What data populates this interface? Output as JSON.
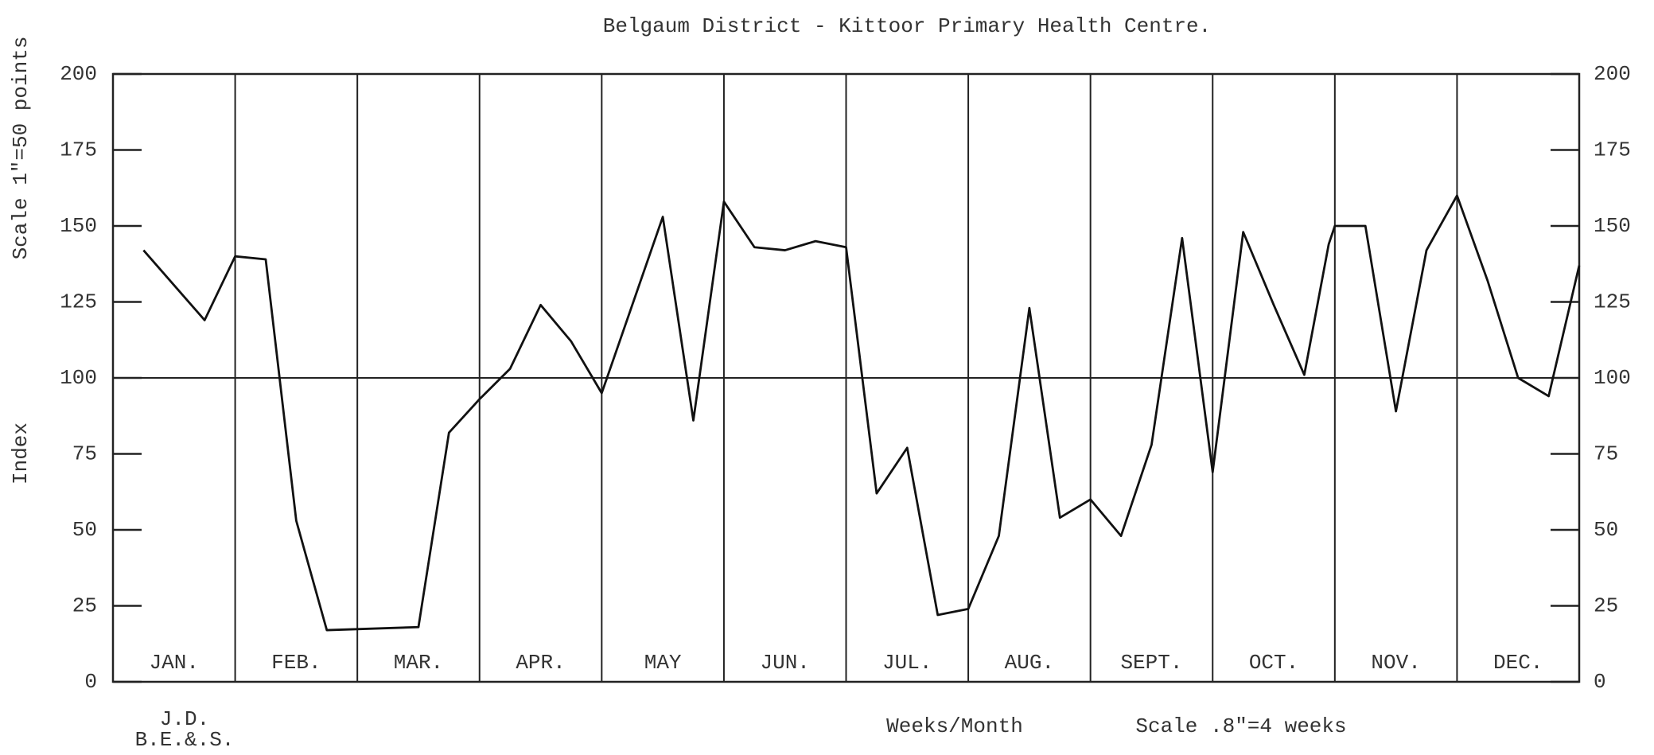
{
  "chart_data": {
    "type": "line",
    "title": "Belgaum District - Kittoor Primary Health Centre.",
    "y_label_scale": "Scale 1\"=50 points",
    "y_label": "Index",
    "x_label": "Weeks/Month",
    "x_scale_note": "Scale .8\"=4 weeks",
    "signature": [
      "J.D.",
      "B.E.&.S."
    ],
    "months": [
      "JAN.",
      "FEB.",
      "MAR.",
      "APR.",
      "MAY",
      "JUN.",
      "JUL.",
      "AUG.",
      "SEPT.",
      "OCT.",
      "NOV.",
      "DEC."
    ],
    "x": [
      1,
      3,
      4,
      5,
      6,
      7,
      10,
      11,
      12,
      13,
      14,
      15,
      16,
      18,
      19,
      20,
      21,
      22,
      23,
      24,
      25,
      26,
      27,
      28,
      29,
      30,
      31,
      32,
      33,
      34,
      35,
      36,
      37,
      38,
      39,
      39.8,
      40,
      41,
      42,
      43,
      44,
      45,
      46,
      47,
      48
    ],
    "values": [
      142,
      119,
      140,
      139,
      53,
      17,
      18,
      82,
      93,
      103,
      124,
      112,
      95,
      153,
      86,
      158,
      143,
      142,
      145,
      143,
      62,
      77,
      22,
      24,
      48,
      123,
      54,
      60,
      48,
      78,
      146,
      69,
      148,
      124,
      101,
      144,
      150,
      150,
      89,
      142,
      160,
      132,
      100,
      94,
      137
    ],
    "color": "#111111",
    "reference_line": 100,
    "xlim": [
      0,
      48
    ],
    "ylim": [
      0,
      200
    ],
    "yticks": [
      0,
      25,
      50,
      75,
      100,
      125,
      150,
      175,
      200
    ]
  }
}
